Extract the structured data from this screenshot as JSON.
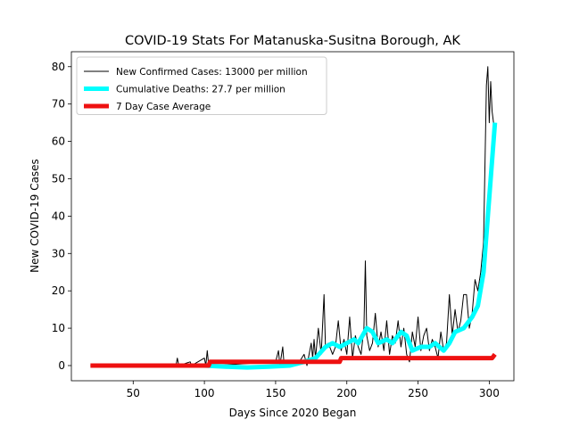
{
  "chart_data": {
    "type": "line",
    "title": "COVID-19 Stats For Matanuska-Susitna Borough, AK",
    "xlabel": "Days Since 2020 Began",
    "ylabel": "New COVID-19 Cases",
    "xlim": [
      6.6,
      317.3
    ],
    "ylim": [
      -4.06,
      84
    ],
    "xticks": [
      50,
      100,
      150,
      200,
      250,
      300
    ],
    "yticks": [
      0,
      10,
      20,
      30,
      40,
      50,
      60,
      70,
      80
    ],
    "legend": "upper left",
    "series": [
      {
        "name": "New Confirmed Cases: 13000 per million",
        "color": "#000000",
        "linewidth": 1,
        "x": [
          20,
          80,
          81,
          82,
          90,
          91,
          100,
          101,
          102,
          103,
          105,
          106,
          150,
          152,
          153,
          155,
          156,
          165,
          170,
          172,
          175,
          176,
          177,
          178,
          180,
          182,
          184,
          185,
          187,
          190,
          192,
          194,
          196,
          198,
          200,
          202,
          204,
          206,
          208,
          210,
          212,
          213,
          214,
          216,
          218,
          220,
          222,
          224,
          226,
          228,
          230,
          232,
          234,
          236,
          238,
          240,
          242,
          244,
          246,
          248,
          250,
          252,
          254,
          256,
          258,
          260,
          262,
          264,
          266,
          268,
          270,
          272,
          274,
          276,
          278,
          280,
          282,
          284,
          286,
          288,
          290,
          292,
          294,
          296,
          298,
          299,
          300,
          301,
          302,
          303,
          304
        ],
        "values": [
          0,
          0,
          2,
          0,
          1,
          0,
          2,
          0,
          4,
          0,
          1,
          0,
          1,
          4,
          0,
          5,
          0,
          0,
          3,
          0,
          6,
          2,
          7,
          2,
          10,
          3,
          19,
          5,
          6,
          3,
          5,
          12,
          4,
          7,
          3,
          13,
          2,
          8,
          5,
          3,
          10,
          28,
          8,
          4,
          6,
          14,
          5,
          9,
          4,
          12,
          3,
          8,
          6,
          12,
          5,
          10,
          3,
          1,
          9,
          5,
          13,
          4,
          8,
          10,
          4,
          7,
          5,
          2,
          9,
          4,
          6,
          19,
          8,
          15,
          9,
          12,
          19,
          19,
          10,
          14,
          23,
          20,
          25,
          33,
          75,
          80,
          65,
          76,
          68,
          65,
          63
        ]
      },
      {
        "name": "Cumulative Deaths: 27.7 per million",
        "color": "#00ffff",
        "linewidth": 5,
        "x": [
          82,
          100,
          115,
          130,
          145,
          160,
          170,
          178,
          185,
          190,
          195,
          200,
          205,
          208,
          214,
          218,
          222,
          228,
          232,
          238,
          242,
          246,
          252,
          258,
          262,
          268,
          272,
          276,
          282,
          288,
          292,
          296,
          299,
          302,
          304
        ],
        "values": [
          0,
          0,
          -0.3,
          -0.5,
          -0.3,
          0,
          1,
          2,
          5,
          6,
          5,
          6,
          7,
          6,
          10,
          9,
          6,
          7,
          6,
          9,
          8,
          4,
          5,
          5,
          6,
          4,
          6,
          9,
          10,
          13,
          16,
          25,
          40,
          55,
          65
        ]
      },
      {
        "name": "7 Day Case Average",
        "color": "#ee1111",
        "linewidth": 5,
        "x": [
          20,
          103,
          104,
          195,
          196,
          302,
          304
        ],
        "values": [
          0,
          0,
          1,
          1,
          2,
          2,
          3
        ]
      }
    ]
  }
}
